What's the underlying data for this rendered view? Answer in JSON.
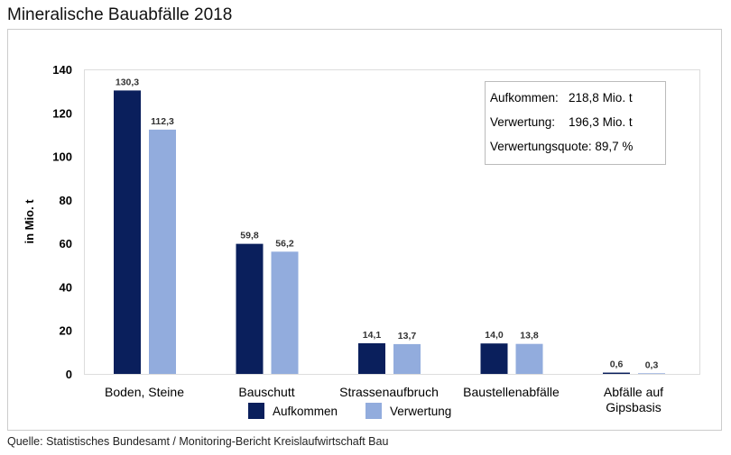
{
  "title": "Mineralische Bauabfälle 2018",
  "source": "Quelle: Statistisches Bundesamt / Monitoring-Bericht Kreislaufwirtschaft Bau",
  "info_box": [
    "Aufkommen:   218,8 Mio. t",
    "Verwertung:    196,3 Mio. t",
    "Verwertungsquote: 89,7 %"
  ],
  "chart_data": {
    "type": "bar",
    "title": "Mineralische Bauabfälle 2018",
    "ylabel": "in Mio. t",
    "xlabel": "",
    "ylim": [
      0,
      140
    ],
    "yticks": [
      0,
      20,
      40,
      60,
      80,
      100,
      120,
      140
    ],
    "grid": false,
    "legend": "bottom",
    "categories": [
      [
        "Boden, Steine"
      ],
      [
        "Bauschutt"
      ],
      [
        "Strassenaufbruch"
      ],
      [
        "Baustellenabfälle"
      ],
      [
        "Abfälle auf",
        "Gipsbasis"
      ]
    ],
    "series": [
      {
        "name": "Aufkommen",
        "color": "#0a1f5c",
        "values": [
          130.3,
          59.8,
          14.1,
          14.0,
          0.6
        ],
        "labels": [
          "130,3",
          "59,8",
          "14,1",
          "14,0",
          "0,6"
        ]
      },
      {
        "name": "Verwertung",
        "color": "#92acdd",
        "values": [
          112.3,
          56.2,
          13.7,
          13.8,
          0.3
        ],
        "labels": [
          "112,3",
          "56,2",
          "13,7",
          "13,8",
          "0,3"
        ]
      }
    ]
  }
}
